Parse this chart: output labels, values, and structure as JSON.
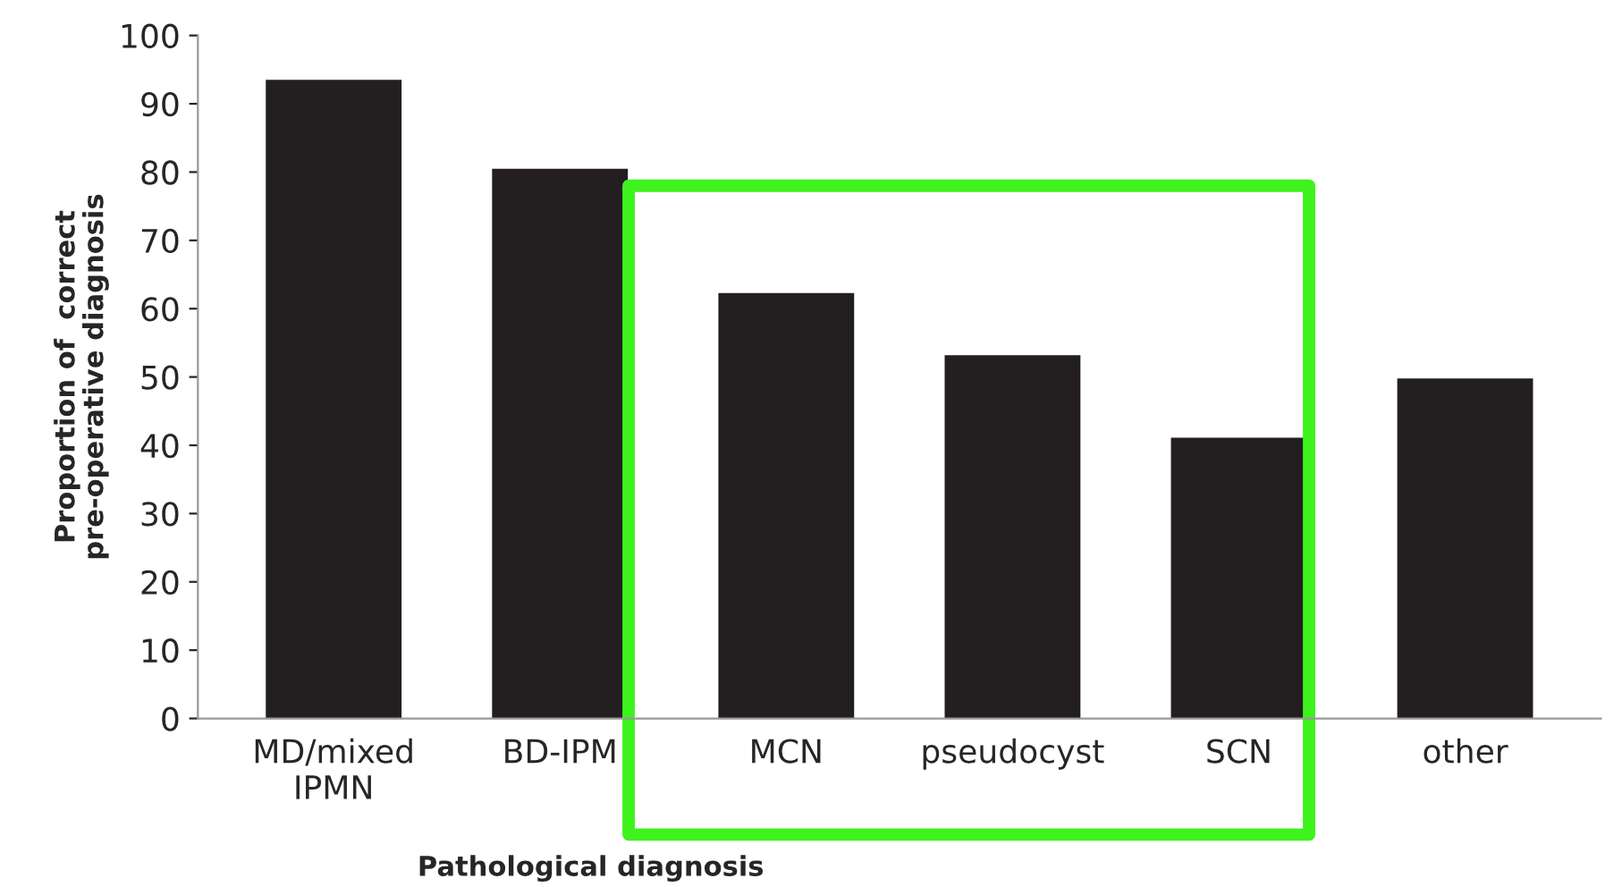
{
  "chart_data": {
    "type": "bar",
    "xlabel": "Pathological diagnosis",
    "ylabel": "Proportion of  correct\npre-operative diagnosis",
    "categories": [
      "MD/mixed\nIPMN",
      "BD-IPM",
      "MCN",
      "pseudocyst",
      "SCN",
      "other"
    ],
    "values": [
      93.5,
      80.5,
      62.3,
      53.2,
      41.1,
      49.8
    ],
    "color": "#231f20",
    "ylim": [
      0,
      100
    ],
    "yticks": [
      0,
      10,
      20,
      30,
      40,
      50,
      60,
      70,
      80,
      90,
      100
    ],
    "grid": false,
    "legend": false
  }
}
